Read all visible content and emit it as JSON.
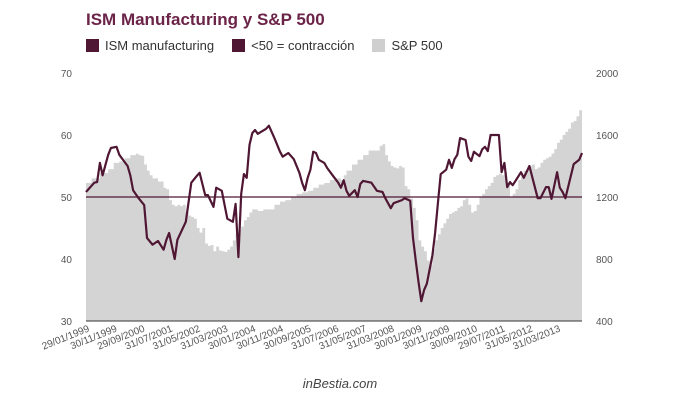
{
  "header": {
    "title": "ISM Manufacturing y S&P 500"
  },
  "legend": [
    {
      "label": "ISM manufacturing",
      "color": "#4f1733"
    },
    {
      "label": "<50 = contracción",
      "color": "#4f1733"
    },
    {
      "label": "S&P 500",
      "color": "#cfcfcf"
    }
  ],
  "footer": {
    "source": "inBestia.com"
  },
  "chart_data": {
    "type": "line",
    "title": "ISM Manufacturing y S&P 500",
    "xlabel": "",
    "ylabel": "",
    "ylabel_right": "",
    "x_range": [
      "1999-01",
      "2013-12"
    ],
    "y_left": {
      "min": 30,
      "max": 70,
      "ticks": [
        "30",
        "40",
        "50",
        "60",
        "70"
      ]
    },
    "y_right": {
      "min": 400,
      "max": 2000,
      "ticks": [
        "400",
        "800",
        "1200",
        "1600",
        "2000"
      ]
    },
    "x_ticks": [
      "29/01/1999",
      "30/11/1999",
      "29/09/2000",
      "31/07/2001",
      "31/05/2002",
      "31/03/2003",
      "30/01/2004",
      "30/11/2004",
      "30/09/2005",
      "31/07/2006",
      "31/05/2007",
      "31/03/2008",
      "30/01/2009",
      "30/11/2009",
      "30/09/2010",
      "29/07/2011",
      "31/05/2012",
      "31/03/2013"
    ],
    "x_tick_dates": [
      "1999-01",
      "1999-11",
      "2000-09",
      "2001-07",
      "2002-05",
      "2003-03",
      "2004-01",
      "2004-11",
      "2005-09",
      "2006-07",
      "2007-05",
      "2008-03",
      "2009-01",
      "2009-11",
      "2010-09",
      "2011-07",
      "2012-05",
      "2013-03"
    ],
    "grid": false,
    "legend_position": "top-left",
    "reference_line": {
      "axis": "left",
      "value": 50,
      "label": "<50 = contracción",
      "color": "#4f1733"
    },
    "series": [
      {
        "name": "S&P 500",
        "type": "area",
        "axis": "right",
        "color": "#d4d4d4",
        "points": [
          [
            "1999-01",
            1290
          ],
          [
            "1999-03",
            1320
          ],
          [
            "1999-06",
            1355
          ],
          [
            "1999-09",
            1380
          ],
          [
            "1999-11",
            1420
          ],
          [
            "2000-01",
            1430
          ],
          [
            "2000-03",
            1450
          ],
          [
            "2000-05",
            1470
          ],
          [
            "2000-07",
            1480
          ],
          [
            "2000-08",
            1470
          ],
          [
            "2000-09",
            1465
          ],
          [
            "2000-10",
            1410
          ],
          [
            "2000-11",
            1370
          ],
          [
            "2000-12",
            1340
          ],
          [
            "2001-01",
            1320
          ],
          [
            "2001-03",
            1300
          ],
          [
            "2001-05",
            1260
          ],
          [
            "2001-06",
            1250
          ],
          [
            "2001-07",
            1180
          ],
          [
            "2001-08",
            1150
          ],
          [
            "2001-09",
            1140
          ],
          [
            "2001-10",
            1150
          ],
          [
            "2001-11",
            1140
          ],
          [
            "2001-12",
            1150
          ],
          [
            "2002-01",
            1100
          ],
          [
            "2002-02",
            1080
          ],
          [
            "2002-03",
            1070
          ],
          [
            "2002-04",
            1060
          ],
          [
            "2002-05",
            1000
          ],
          [
            "2002-06",
            970
          ],
          [
            "2002-07",
            1000
          ],
          [
            "2002-08",
            900
          ],
          [
            "2002-09",
            885
          ],
          [
            "2002-10",
            890
          ],
          [
            "2002-11",
            850
          ],
          [
            "2002-12",
            880
          ],
          [
            "2003-01",
            855
          ],
          [
            "2003-02",
            850
          ],
          [
            "2003-03",
            845
          ],
          [
            "2003-04",
            860
          ],
          [
            "2003-05",
            880
          ],
          [
            "2003-06",
            920
          ],
          [
            "2003-07",
            960
          ],
          [
            "2003-08",
            990
          ],
          [
            "2003-09",
            1010
          ],
          [
            "2003-10",
            1050
          ],
          [
            "2003-11",
            1070
          ],
          [
            "2003-12",
            1100
          ],
          [
            "2004-01",
            1120
          ],
          [
            "2004-02",
            1120
          ],
          [
            "2004-03",
            1110
          ],
          [
            "2004-05",
            1120
          ],
          [
            "2004-07",
            1120
          ],
          [
            "2004-09",
            1150
          ],
          [
            "2004-11",
            1170
          ],
          [
            "2005-01",
            1180
          ],
          [
            "2005-03",
            1200
          ],
          [
            "2005-05",
            1220
          ],
          [
            "2005-07",
            1230
          ],
          [
            "2005-09",
            1240
          ],
          [
            "2005-11",
            1260
          ],
          [
            "2006-01",
            1280
          ],
          [
            "2006-03",
            1290
          ],
          [
            "2006-05",
            1310
          ],
          [
            "2006-07",
            1320
          ],
          [
            "2006-09",
            1310
          ],
          [
            "2006-10",
            1340
          ],
          [
            "2006-11",
            1370
          ],
          [
            "2007-01",
            1410
          ],
          [
            "2007-03",
            1440
          ],
          [
            "2007-05",
            1470
          ],
          [
            "2007-07",
            1500
          ],
          [
            "2007-09",
            1500
          ],
          [
            "2007-11",
            1530
          ],
          [
            "2007-12",
            1540
          ],
          [
            "2008-01",
            1470
          ],
          [
            "2008-02",
            1430
          ],
          [
            "2008-03",
            1400
          ],
          [
            "2008-04",
            1390
          ],
          [
            "2008-05",
            1385
          ],
          [
            "2008-06",
            1400
          ],
          [
            "2008-07",
            1390
          ],
          [
            "2008-08",
            1270
          ],
          [
            "2008-09",
            1250
          ],
          [
            "2008-10",
            1190
          ],
          [
            "2008-11",
            1130
          ],
          [
            "2008-12",
            1050
          ],
          [
            "2009-01",
            920
          ],
          [
            "2009-02",
            880
          ],
          [
            "2009-03",
            850
          ],
          [
            "2009-04",
            790
          ],
          [
            "2009-05",
            760
          ],
          [
            "2009-06",
            860
          ],
          [
            "2009-07",
            920
          ],
          [
            "2009-08",
            960
          ],
          [
            "2009-09",
            1000
          ],
          [
            "2009-10",
            1030
          ],
          [
            "2009-11",
            1060
          ],
          [
            "2009-12",
            1090
          ],
          [
            "2010-01",
            1100
          ],
          [
            "2010-02",
            1110
          ],
          [
            "2010-03",
            1130
          ],
          [
            "2010-04",
            1140
          ],
          [
            "2010-05",
            1180
          ],
          [
            "2010-06",
            1190
          ],
          [
            "2010-07",
            1150
          ],
          [
            "2010-08",
            1100
          ],
          [
            "2010-09",
            1110
          ],
          [
            "2010-10",
            1150
          ],
          [
            "2010-11",
            1200
          ],
          [
            "2010-12",
            1220
          ],
          [
            "2011-01",
            1250
          ],
          [
            "2011-02",
            1270
          ],
          [
            "2011-03",
            1290
          ],
          [
            "2011-04",
            1330
          ],
          [
            "2011-05",
            1340
          ],
          [
            "2011-06",
            1350
          ],
          [
            "2011-07",
            1340
          ],
          [
            "2011-08",
            1360
          ],
          [
            "2011-09",
            1290
          ],
          [
            "2011-10",
            1200
          ],
          [
            "2011-11",
            1220
          ],
          [
            "2011-12",
            1250
          ],
          [
            "2012-01",
            1310
          ],
          [
            "2012-02",
            1340
          ],
          [
            "2012-03",
            1370
          ],
          [
            "2012-04",
            1380
          ],
          [
            "2012-05",
            1400
          ],
          [
            "2012-06",
            1410
          ],
          [
            "2012-07",
            1380
          ],
          [
            "2012-08",
            1390
          ],
          [
            "2012-09",
            1420
          ],
          [
            "2012-10",
            1440
          ],
          [
            "2012-11",
            1450
          ],
          [
            "2012-12",
            1460
          ],
          [
            "2013-01",
            1480
          ],
          [
            "2013-02",
            1510
          ],
          [
            "2013-03",
            1550
          ],
          [
            "2013-04",
            1570
          ],
          [
            "2013-05",
            1600
          ],
          [
            "2013-06",
            1620
          ],
          [
            "2013-07",
            1640
          ],
          [
            "2013-08",
            1680
          ],
          [
            "2013-09",
            1690
          ],
          [
            "2013-10",
            1720
          ],
          [
            "2013-11",
            1760
          ],
          [
            "2013-12",
            1810
          ]
        ]
      },
      {
        "name": "ISM manufacturing",
        "type": "line",
        "axis": "left",
        "color": "#4f1733",
        "points": [
          [
            "1999-01",
            50.8
          ],
          [
            "1999-04",
            52.3
          ],
          [
            "1999-05",
            52.4
          ],
          [
            "1999-06",
            55.5
          ],
          [
            "1999-07",
            53.5
          ],
          [
            "1999-09",
            56.8
          ],
          [
            "1999-10",
            57.9
          ],
          [
            "1999-12",
            58.1
          ],
          [
            "2000-01",
            56.8
          ],
          [
            "2000-04",
            55.0
          ],
          [
            "2000-05",
            53.5
          ],
          [
            "2000-06",
            51.1
          ],
          [
            "2000-08",
            49.8
          ],
          [
            "2000-10",
            48.7
          ],
          [
            "2000-11",
            43.4
          ],
          [
            "2001-01",
            42.3
          ],
          [
            "2001-03",
            42.9
          ],
          [
            "2001-05",
            41.5
          ],
          [
            "2001-06",
            43.1
          ],
          [
            "2001-07",
            44.2
          ],
          [
            "2001-09",
            40.0
          ],
          [
            "2001-10",
            43.1
          ],
          [
            "2002-01",
            46.0
          ],
          [
            "2002-03",
            52.3
          ],
          [
            "2002-05",
            53.4
          ],
          [
            "2002-06",
            53.9
          ],
          [
            "2002-08",
            50.3
          ],
          [
            "2002-09",
            50.3
          ],
          [
            "2002-11",
            48.4
          ],
          [
            "2002-12",
            51.5
          ],
          [
            "2003-02",
            51.0
          ],
          [
            "2003-04",
            46.5
          ],
          [
            "2003-06",
            46.0
          ],
          [
            "2003-07",
            48.9
          ],
          [
            "2003-08",
            40.3
          ],
          [
            "2003-09",
            50.5
          ],
          [
            "2003-10",
            53.7
          ],
          [
            "2003-11",
            53.1
          ],
          [
            "2003-12",
            58.4
          ],
          [
            "2004-01",
            60.3
          ],
          [
            "2004-02",
            60.8
          ],
          [
            "2004-03",
            60.2
          ],
          [
            "2004-06",
            61.0
          ],
          [
            "2004-07",
            61.5
          ],
          [
            "2004-09",
            59.5
          ],
          [
            "2004-11",
            57.3
          ],
          [
            "2004-12",
            56.5
          ],
          [
            "2005-02",
            57.1
          ],
          [
            "2005-04",
            56.1
          ],
          [
            "2005-06",
            53.9
          ],
          [
            "2005-07",
            52.3
          ],
          [
            "2005-08",
            51.1
          ],
          [
            "2005-09",
            53.1
          ],
          [
            "2005-10",
            54.4
          ],
          [
            "2005-11",
            57.3
          ],
          [
            "2005-12",
            57.1
          ],
          [
            "2006-01",
            56.0
          ],
          [
            "2006-03",
            55.5
          ],
          [
            "2006-04",
            54.7
          ],
          [
            "2006-06",
            53.5
          ],
          [
            "2006-08",
            52.3
          ],
          [
            "2006-09",
            51.5
          ],
          [
            "2006-10",
            52.7
          ],
          [
            "2006-11",
            51.0
          ],
          [
            "2006-12",
            50.2
          ],
          [
            "2007-02",
            51.1
          ],
          [
            "2007-03",
            50.0
          ],
          [
            "2007-04",
            52.1
          ],
          [
            "2007-05",
            52.6
          ],
          [
            "2007-08",
            52.3
          ],
          [
            "2007-10",
            51.0
          ],
          [
            "2007-12",
            50.8
          ],
          [
            "2008-01",
            49.8
          ],
          [
            "2008-03",
            48.2
          ],
          [
            "2008-04",
            49.0
          ],
          [
            "2008-07",
            49.5
          ],
          [
            "2008-08",
            49.8
          ],
          [
            "2008-10",
            49.4
          ],
          [
            "2008-11",
            43.4
          ],
          [
            "2008-12",
            39.8
          ],
          [
            "2009-01",
            36.3
          ],
          [
            "2009-02",
            33.2
          ],
          [
            "2009-03",
            35.0
          ],
          [
            "2009-04",
            36.0
          ],
          [
            "2009-06",
            40.6
          ],
          [
            "2009-07",
            44.2
          ],
          [
            "2009-08",
            49.0
          ],
          [
            "2009-09",
            53.7
          ],
          [
            "2009-11",
            54.4
          ],
          [
            "2009-12",
            56.0
          ],
          [
            "2010-01",
            54.7
          ],
          [
            "2010-02",
            56.1
          ],
          [
            "2010-03",
            56.8
          ],
          [
            "2010-04",
            59.5
          ],
          [
            "2010-06",
            59.2
          ],
          [
            "2010-07",
            56.5
          ],
          [
            "2010-08",
            55.8
          ],
          [
            "2010-09",
            57.3
          ],
          [
            "2010-11",
            56.6
          ],
          [
            "2010-12",
            57.7
          ],
          [
            "2011-01",
            58.1
          ],
          [
            "2011-02",
            57.4
          ],
          [
            "2011-03",
            60.0
          ],
          [
            "2011-06",
            60.0
          ],
          [
            "2011-07",
            54.0
          ],
          [
            "2011-08",
            55.5
          ],
          [
            "2011-09",
            51.6
          ],
          [
            "2011-10",
            52.4
          ],
          [
            "2011-11",
            51.9
          ],
          [
            "2011-12",
            52.6
          ],
          [
            "2012-02",
            54.0
          ],
          [
            "2012-03",
            53.1
          ],
          [
            "2012-05",
            55.0
          ],
          [
            "2012-08",
            49.8
          ],
          [
            "2012-09",
            49.8
          ],
          [
            "2012-11",
            51.6
          ],
          [
            "2012-12",
            51.6
          ],
          [
            "2013-01",
            49.7
          ],
          [
            "2013-03",
            54.0
          ],
          [
            "2013-04",
            51.5
          ],
          [
            "2013-05",
            50.8
          ],
          [
            "2013-06",
            49.8
          ],
          [
            "2013-09",
            55.3
          ],
          [
            "2013-11",
            56.0
          ],
          [
            "2013-12",
            57.1
          ]
        ]
      }
    ]
  }
}
